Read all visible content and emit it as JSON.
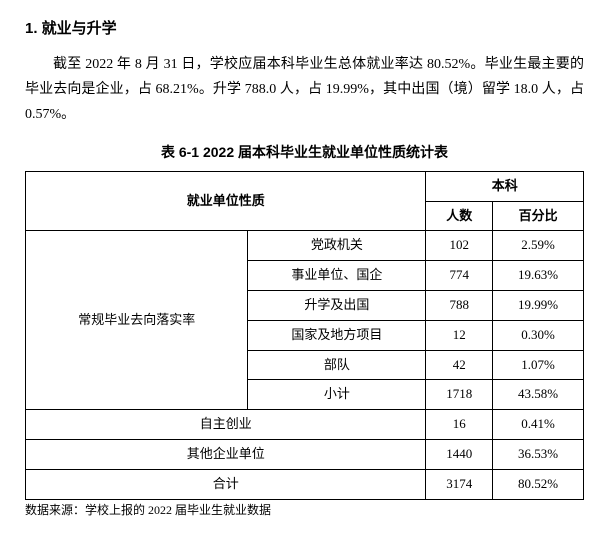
{
  "heading": "1. 就业与升学",
  "paragraph": "截至 2022 年 8 月 31 日，学校应届本科毕业生总体就业率达 80.52%。毕业生最主要的毕业去向是企业，占 68.21%。升学 788.0 人，占 19.99%，其中出国（境）留学 18.0 人，占 0.57%。",
  "table": {
    "title": "表 6-1 2022 届本科毕业生就业单位性质统计表",
    "header": {
      "col1": "就业单位性质",
      "col2": "本科",
      "sub1": "人数",
      "sub2": "百分比"
    },
    "group_label": "常规毕业去向落实率",
    "group_rows": [
      {
        "name": "党政机关",
        "count": "102",
        "pct": "2.59%"
      },
      {
        "name": "事业单位、国企",
        "count": "774",
        "pct": "19.63%"
      },
      {
        "name": "升学及出国",
        "count": "788",
        "pct": "19.99%"
      },
      {
        "name": "国家及地方项目",
        "count": "12",
        "pct": "0.30%"
      },
      {
        "name": "部队",
        "count": "42",
        "pct": "1.07%"
      },
      {
        "name": "小计",
        "count": "1718",
        "pct": "43.58%"
      }
    ],
    "flat_rows": [
      {
        "name": "自主创业",
        "count": "16",
        "pct": "0.41%"
      },
      {
        "name": "其他企业单位",
        "count": "1440",
        "pct": "36.53%"
      },
      {
        "name": "合计",
        "count": "3174",
        "pct": "80.52%"
      }
    ]
  },
  "footnote": "数据来源：学校上报的 2022 届毕业生就业数据",
  "style": {
    "font_family_body": "SimSun",
    "font_family_heading": "SimHei",
    "font_size_body": 14,
    "font_size_heading": 15,
    "font_size_table": 13,
    "font_size_footnote": 12,
    "border_color": "#000000",
    "background_color": "#ffffff",
    "text_color": "#000000"
  }
}
